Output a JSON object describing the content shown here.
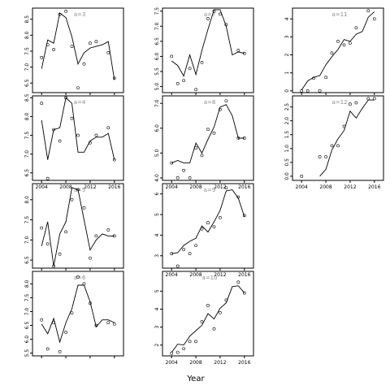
{
  "chart_data": {
    "type": "scatter",
    "xlabel": "Year",
    "panels": [
      {
        "label": "a=3",
        "xlim": [
          2002.5,
          2017.5
        ],
        "ylim": [
          6.2,
          8.85
        ],
        "yticks": [
          6.5,
          7.0,
          7.5,
          8.0,
          8.5
        ],
        "ytick_labels": [
          "6.5",
          "7.0",
          "7.5",
          "8.0",
          "8.5"
        ],
        "points": [
          [
            2004,
            7.3
          ],
          [
            2005,
            7.7
          ],
          [
            2006,
            7.55
          ],
          [
            2007,
            8.65
          ],
          [
            2008,
            8.75
          ],
          [
            2009,
            7.65
          ],
          [
            2010,
            6.35
          ],
          [
            2011,
            7.1
          ],
          [
            2012,
            7.75
          ],
          [
            2013,
            7.8
          ],
          [
            2015,
            7.45
          ],
          [
            2016,
            6.65
          ]
        ],
        "fit": [
          [
            2004,
            6.95
          ],
          [
            2005,
            7.85
          ],
          [
            2006,
            7.75
          ],
          [
            2007,
            8.7
          ],
          [
            2008,
            8.55
          ],
          [
            2009,
            7.95
          ],
          [
            2010,
            7.1
          ],
          [
            2011,
            7.45
          ],
          [
            2012,
            7.6
          ],
          [
            2013,
            7.65
          ],
          [
            2014,
            7.7
          ],
          [
            2015,
            7.8
          ],
          [
            2016,
            6.6
          ]
        ]
      },
      {
        "label": "a=4",
        "xlim": [
          2002.5,
          2017.5
        ],
        "ylim": [
          6.3,
          8.55
        ],
        "yticks": [
          6.5,
          7.0,
          7.5,
          8.0,
          8.5
        ],
        "ytick_labels": [
          "6.5",
          "7.0",
          "7.5",
          "8.0",
          "8.5"
        ],
        "points": [
          [
            2004,
            8.35
          ],
          [
            2005,
            6.35
          ],
          [
            2006,
            7.65
          ],
          [
            2007,
            7.35
          ],
          [
            2008,
            8.5
          ],
          [
            2009,
            7.95
          ],
          [
            2010,
            7.5
          ],
          [
            2012,
            7.3
          ],
          [
            2013,
            7.5
          ],
          [
            2015,
            7.7
          ],
          [
            2016,
            6.85
          ]
        ],
        "fit": [
          [
            2004,
            7.9
          ],
          [
            2005,
            6.85
          ],
          [
            2006,
            7.65
          ],
          [
            2007,
            7.7
          ],
          [
            2008,
            8.5
          ],
          [
            2009,
            8.35
          ],
          [
            2010,
            7.05
          ],
          [
            2011,
            7.05
          ],
          [
            2012,
            7.35
          ],
          [
            2013,
            7.45
          ],
          [
            2014,
            7.45
          ],
          [
            2015,
            7.55
          ],
          [
            2016,
            6.85
          ]
        ]
      },
      {
        "label": "a=5",
        "xlim": [
          2002.5,
          2017.5
        ],
        "ylim": [
          6.3,
          8.4
        ],
        "yticks": [
          6.5,
          7.0,
          7.5,
          8.0
        ],
        "ytick_labels": [
          "6.5",
          "7.0",
          "7.5",
          "8.0"
        ],
        "points": [
          [
            2004,
            7.3
          ],
          [
            2005,
            6.9
          ],
          [
            2006,
            6.35
          ],
          [
            2007,
            6.65
          ],
          [
            2008,
            7.2
          ],
          [
            2009,
            8.0
          ],
          [
            2010,
            8.25
          ],
          [
            2011,
            7.8
          ],
          [
            2012,
            6.55
          ],
          [
            2013,
            7.1
          ],
          [
            2015,
            7.25
          ],
          [
            2016,
            7.1
          ]
        ],
        "fit": [
          [
            2004,
            6.85
          ],
          [
            2005,
            7.45
          ],
          [
            2006,
            6.35
          ],
          [
            2007,
            7.15
          ],
          [
            2008,
            7.45
          ],
          [
            2009,
            8.3
          ],
          [
            2010,
            8.25
          ],
          [
            2011,
            7.5
          ],
          [
            2012,
            6.75
          ],
          [
            2013,
            7.0
          ],
          [
            2014,
            7.15
          ],
          [
            2015,
            7.1
          ],
          [
            2016,
            7.1
          ]
        ]
      },
      {
        "label": "a=6",
        "xlim": [
          2002.5,
          2017.5
        ],
        "ylim": [
          5.4,
          8.45
        ],
        "yticks": [
          5.5,
          6.0,
          6.5,
          7.0,
          7.5,
          8.0
        ],
        "ytick_labels": [
          "5.5",
          "6.0",
          "6.5",
          "7.0",
          "7.5",
          "8.0"
        ],
        "points": [
          [
            2004,
            6.7
          ],
          [
            2005,
            5.65
          ],
          [
            2006,
            6.6
          ],
          [
            2007,
            5.55
          ],
          [
            2008,
            6.25
          ],
          [
            2009,
            6.95
          ],
          [
            2010,
            8.25
          ],
          [
            2011,
            8.0
          ],
          [
            2012,
            7.3
          ],
          [
            2013,
            6.5
          ],
          [
            2015,
            6.6
          ],
          [
            2016,
            6.55
          ]
        ],
        "fit": [
          [
            2004,
            6.55
          ],
          [
            2005,
            6.2
          ],
          [
            2006,
            6.75
          ],
          [
            2007,
            5.9
          ],
          [
            2008,
            6.6
          ],
          [
            2009,
            7.1
          ],
          [
            2010,
            7.95
          ],
          [
            2011,
            7.95
          ],
          [
            2012,
            7.35
          ],
          [
            2013,
            6.45
          ],
          [
            2014,
            6.7
          ],
          [
            2015,
            6.7
          ],
          [
            2016,
            6.6
          ]
        ]
      },
      {
        "label": "a=7",
        "xlim": [
          2002.5,
          2017.5
        ],
        "ylim": [
          4.8,
          7.6
        ],
        "yticks": [
          5.0,
          5.5,
          6.0,
          6.5,
          7.0,
          7.5
        ],
        "ytick_labels": [
          "5.0",
          "5.5",
          "6.0",
          "6.5",
          "7.0",
          "7.5"
        ],
        "points": [
          [
            2004,
            6.0
          ],
          [
            2005,
            5.1
          ],
          [
            2006,
            5.2
          ],
          [
            2007,
            5.6
          ],
          [
            2008,
            4.9
          ],
          [
            2009,
            5.8
          ],
          [
            2010,
            7.25
          ],
          [
            2011,
            7.5
          ],
          [
            2012,
            7.4
          ],
          [
            2013,
            7.05
          ],
          [
            2015,
            6.2
          ],
          [
            2016,
            6.1
          ]
        ],
        "fit": [
          [
            2004,
            5.85
          ],
          [
            2005,
            5.7
          ],
          [
            2006,
            5.35
          ],
          [
            2007,
            6.05
          ],
          [
            2008,
            5.4
          ],
          [
            2009,
            6.2
          ],
          [
            2010,
            6.9
          ],
          [
            2011,
            7.55
          ],
          [
            2012,
            7.55
          ],
          [
            2013,
            7.0
          ],
          [
            2014,
            6.05
          ],
          [
            2015,
            6.15
          ],
          [
            2016,
            6.1
          ]
        ]
      },
      {
        "label": "a=8",
        "xlim": [
          2002.5,
          2017.5
        ],
        "ylim": [
          3.9,
          7.3
        ],
        "yticks": [
          4.0,
          5.0,
          6.0,
          7.0
        ],
        "ytick_labels": [
          "4.0",
          "5.0",
          "6.0",
          "7.0"
        ],
        "points": [
          [
            2004,
            4.6
          ],
          [
            2005,
            4.0
          ],
          [
            2006,
            4.3
          ],
          [
            2007,
            4.0
          ],
          [
            2008,
            5.2
          ],
          [
            2009,
            4.9
          ],
          [
            2010,
            5.95
          ],
          [
            2011,
            5.8
          ],
          [
            2012,
            6.75
          ],
          [
            2013,
            7.1
          ],
          [
            2015,
            5.6
          ],
          [
            2016,
            5.6
          ]
        ],
        "fit": [
          [
            2004,
            4.6
          ],
          [
            2005,
            4.7
          ],
          [
            2006,
            4.6
          ],
          [
            2007,
            4.6
          ],
          [
            2008,
            5.4
          ],
          [
            2009,
            5.0
          ],
          [
            2010,
            5.55
          ],
          [
            2011,
            6.05
          ],
          [
            2012,
            6.85
          ],
          [
            2013,
            6.95
          ],
          [
            2014,
            6.5
          ],
          [
            2015,
            5.6
          ],
          [
            2016,
            5.6
          ]
        ]
      },
      {
        "label": "a=9",
        "xlim": [
          2002.5,
          2017.5
        ],
        "ylim": [
          2.4,
          6.5
        ],
        "yticks": [
          3,
          4,
          5,
          6
        ],
        "ytick_labels": [
          "3",
          "4",
          "5",
          "6"
        ],
        "points": [
          [
            2004,
            3.1
          ],
          [
            2005,
            2.5
          ],
          [
            2006,
            3.3
          ],
          [
            2007,
            3.1
          ],
          [
            2008,
            3.5
          ],
          [
            2009,
            4.3
          ],
          [
            2010,
            4.6
          ],
          [
            2011,
            4.4
          ],
          [
            2012,
            4.85
          ],
          [
            2013,
            6.3
          ],
          [
            2015,
            5.85
          ],
          [
            2016,
            4.95
          ]
        ],
        "fit": [
          [
            2004,
            3.1
          ],
          [
            2005,
            3.15
          ],
          [
            2006,
            3.5
          ],
          [
            2007,
            3.7
          ],
          [
            2008,
            3.85
          ],
          [
            2009,
            4.45
          ],
          [
            2010,
            4.15
          ],
          [
            2011,
            4.65
          ],
          [
            2012,
            5.2
          ],
          [
            2013,
            6.15
          ],
          [
            2014,
            6.2
          ],
          [
            2015,
            5.8
          ],
          [
            2016,
            4.9
          ]
        ]
      },
      {
        "label": "a=10",
        "xlim": [
          2002.5,
          2017.5
        ],
        "ylim": [
          1.4,
          6.1
        ],
        "yticks": [
          2,
          3,
          4,
          5
        ],
        "ytick_labels": [
          "2",
          "3",
          "4",
          "5"
        ],
        "points": [
          [
            2004,
            1.55
          ],
          [
            2005,
            1.6
          ],
          [
            2006,
            1.8
          ],
          [
            2007,
            2.2
          ],
          [
            2008,
            2.2
          ],
          [
            2009,
            3.3
          ],
          [
            2010,
            4.2
          ],
          [
            2011,
            2.9
          ],
          [
            2012,
            3.8
          ],
          [
            2013,
            4.5
          ],
          [
            2015,
            5.5
          ],
          [
            2016,
            4.9
          ]
        ],
        "fit": [
          [
            2004,
            1.6
          ],
          [
            2005,
            2.05
          ],
          [
            2006,
            2.0
          ],
          [
            2007,
            2.5
          ],
          [
            2008,
            2.8
          ],
          [
            2009,
            3.1
          ],
          [
            2010,
            3.75
          ],
          [
            2011,
            3.45
          ],
          [
            2012,
            4.05
          ],
          [
            2013,
            4.35
          ],
          [
            2014,
            5.25
          ],
          [
            2015,
            5.3
          ],
          [
            2016,
            4.9
          ]
        ]
      },
      {
        "label": "a=11",
        "xlim": [
          2002.5,
          2017.5
        ],
        "ylim": [
          -0.1,
          4.6
        ],
        "yticks": [
          0,
          1,
          2,
          3,
          4
        ],
        "ytick_labels": [
          "0",
          "1",
          "2",
          "3",
          "4"
        ],
        "points": [
          [
            2004,
            0.0
          ],
          [
            2005,
            0.0
          ],
          [
            2006,
            0.7
          ],
          [
            2007,
            0.0
          ],
          [
            2008,
            0.75
          ],
          [
            2009,
            2.1
          ],
          [
            2010,
            2.75
          ],
          [
            2011,
            2.55
          ],
          [
            2012,
            2.65
          ],
          [
            2013,
            3.5
          ],
          [
            2015,
            4.45
          ],
          [
            2016,
            4.0
          ]
        ],
        "fit": [
          [
            2004,
            0.05
          ],
          [
            2005,
            0.55
          ],
          [
            2006,
            0.75
          ],
          [
            2007,
            0.85
          ],
          [
            2008,
            1.45
          ],
          [
            2009,
            1.9
          ],
          [
            2010,
            2.3
          ],
          [
            2011,
            2.85
          ],
          [
            2012,
            2.75
          ],
          [
            2013,
            3.15
          ],
          [
            2014,
            3.3
          ],
          [
            2015,
            4.1
          ],
          [
            2016,
            4.4
          ]
        ]
      },
      {
        "label": "a=12",
        "xlim": [
          2002.5,
          2017.5
        ],
        "ylim": [
          -0.15,
          2.9
        ],
        "yticks": [
          0.0,
          0.5,
          1.0,
          1.5,
          2.0,
          2.5
        ],
        "ytick_labels": [
          "0.0",
          "0.5",
          "1.0",
          "1.5",
          "2.0",
          "2.5"
        ],
        "points": [
          [
            2004,
            0.0
          ],
          [
            2007,
            0.7
          ],
          [
            2008,
            0.7
          ],
          [
            2009,
            1.1
          ],
          [
            2010,
            1.1
          ],
          [
            2011,
            1.8
          ],
          [
            2012,
            2.6
          ],
          [
            2013,
            2.65
          ],
          [
            2015,
            2.8
          ],
          [
            2016,
            2.8
          ]
        ],
        "fit": [
          [
            2007,
            0.0
          ],
          [
            2008,
            0.25
          ],
          [
            2009,
            0.95
          ],
          [
            2010,
            1.35
          ],
          [
            2011,
            1.65
          ],
          [
            2012,
            2.35
          ],
          [
            2013,
            2.1
          ],
          [
            2014,
            2.45
          ],
          [
            2015,
            2.75
          ],
          [
            2016,
            2.75
          ]
        ]
      }
    ],
    "xticks": [
      2004,
      2008,
      2012,
      2016
    ],
    "xtick_labels": [
      "2004",
      "2008",
      "2012",
      "2016"
    ]
  }
}
